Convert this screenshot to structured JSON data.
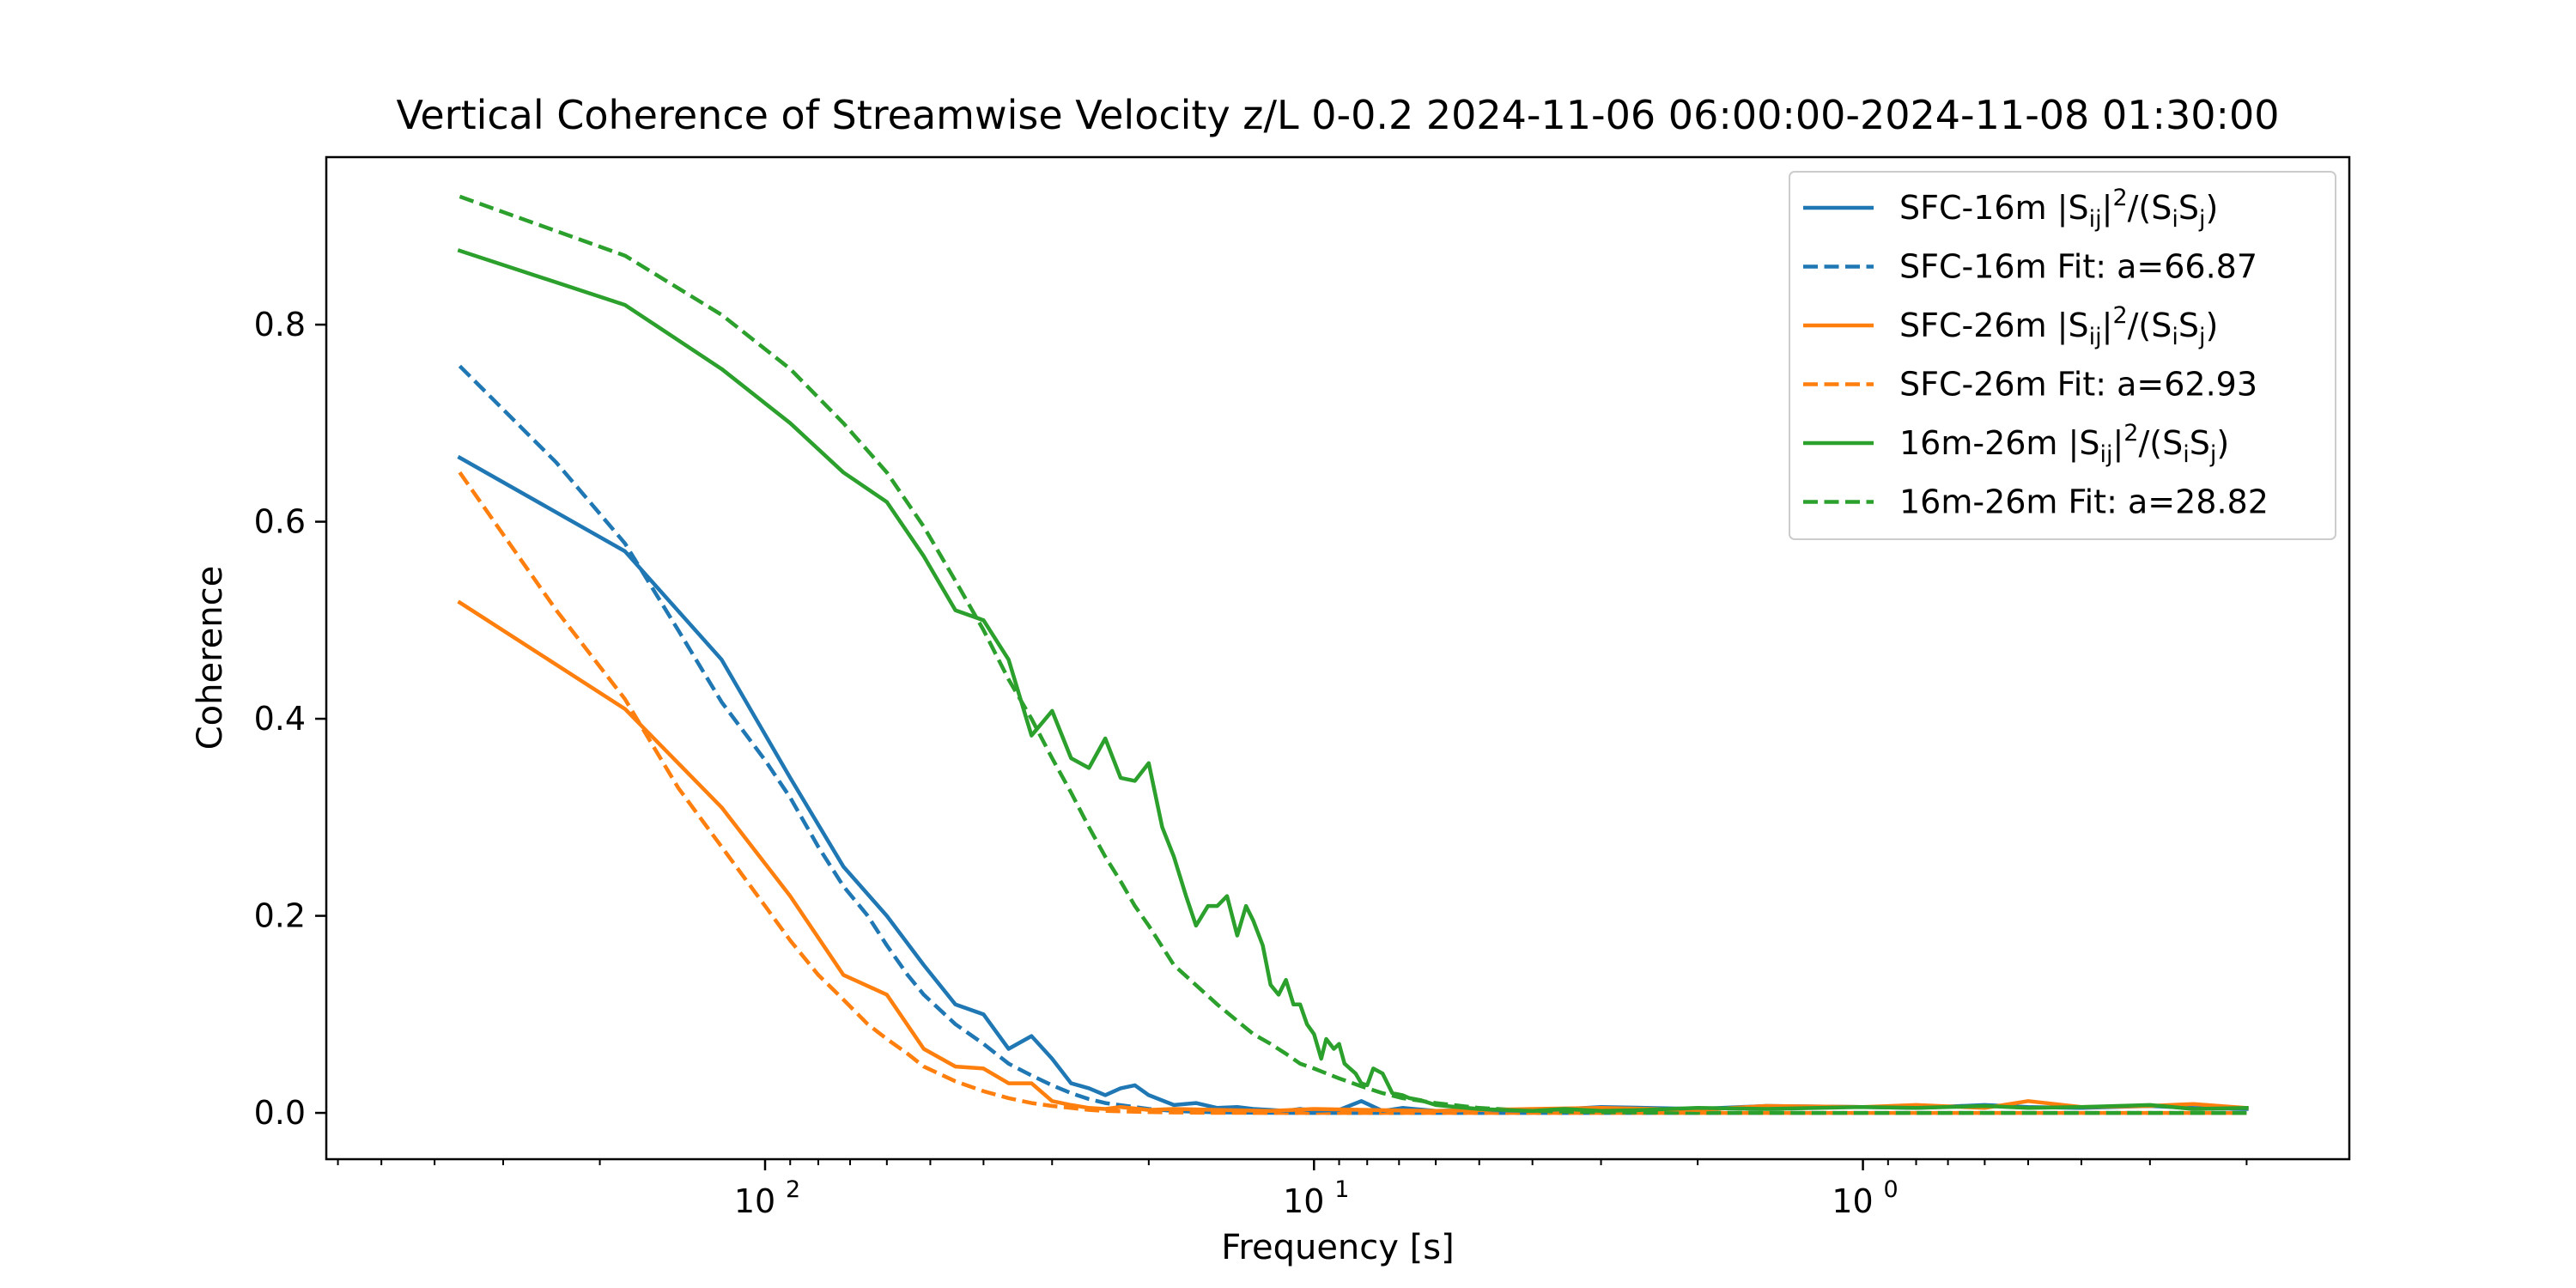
{
  "chart_data": {
    "type": "line",
    "title": "Vertical Coherence of Streamwise Velocity z/L 0-0.2 2024-11-06 06:00:00-2024-11-08 01:30:00",
    "xlabel": "Frequency [s]",
    "ylabel": "Coherence",
    "xscale": "log",
    "x_inverted": true,
    "xlim": [
      630,
      0.13
    ],
    "ylim": [
      -0.047,
      0.97
    ],
    "xticks": [
      100,
      10,
      1
    ],
    "xtick_labels": [
      "10",
      "10",
      "10"
    ],
    "xtick_exponents": [
      "2",
      "1",
      "0"
    ],
    "yticks": [
      0.0,
      0.2,
      0.4,
      0.6,
      0.8
    ],
    "ytick_labels": [
      "0.0",
      "0.2",
      "0.4",
      "0.6",
      "0.8"
    ],
    "grid": false,
    "legend_position": "top-right",
    "series": [
      {
        "name": "SFC-16m |Sij|2/(SiSj)",
        "legend": {
          "prefix": "SFC-16m |S",
          "sub1": "ij",
          "mid1": "|",
          "sup": "2",
          "mid2": "/(S",
          "sub2": "i",
          "mid3": "S",
          "sub3": "j",
          "suffix": ")"
        },
        "color": "#1f77b4",
        "style": "solid",
        "x": [
          360,
          180,
          120,
          90,
          72,
          60,
          51.4,
          45,
          40,
          36,
          32.7,
          30,
          27.7,
          25.7,
          24,
          22.5,
          21.2,
          20,
          18,
          16.4,
          15,
          13.8,
          12.9,
          12,
          11.25,
          10.6,
          10,
          9,
          8.2,
          7.5,
          6.9,
          6,
          5,
          4,
          3,
          2,
          1.5,
          1,
          0.8,
          0.6,
          0.5,
          0.4,
          0.3,
          0.25,
          0.2
        ],
        "y": [
          0.665,
          0.57,
          0.46,
          0.34,
          0.25,
          0.2,
          0.15,
          0.11,
          0.1,
          0.065,
          0.078,
          0.055,
          0.03,
          0.025,
          0.018,
          0.025,
          0.028,
          0.018,
          0.008,
          0.01,
          0.005,
          0.006,
          0.004,
          0.003,
          0.002,
          0.004,
          0.002,
          0.003,
          0.012,
          0.002,
          0.005,
          0.002,
          0.003,
          0.002,
          0.006,
          0.004,
          0.007,
          0.006,
          0.005,
          0.008,
          0.006,
          0.005,
          0.007,
          0.005,
          0.004
        ]
      },
      {
        "name": "SFC-16m Fit: a=66.87",
        "color": "#1f77b4",
        "style": "dashed",
        "x": [
          360,
          240,
          180,
          144,
          120,
          100,
          90,
          80,
          72,
          65,
          60,
          55,
          51.4,
          45,
          40,
          36,
          32.7,
          30,
          27.7,
          25.7,
          24,
          20,
          18,
          15,
          12,
          10,
          5,
          1,
          0.2
        ],
        "y": [
          0.758,
          0.66,
          0.578,
          0.49,
          0.417,
          0.358,
          0.32,
          0.27,
          0.23,
          0.2,
          0.17,
          0.14,
          0.12,
          0.09,
          0.07,
          0.05,
          0.038,
          0.028,
          0.02,
          0.014,
          0.01,
          0.004,
          0.002,
          0.0005,
          0.0001,
          0,
          0,
          0,
          0
        ]
      },
      {
        "name": "SFC-26m |Sij|2/(SiSj)",
        "legend": {
          "prefix": "SFC-26m |S",
          "sub1": "ij",
          "mid1": "|",
          "sup": "2",
          "mid2": "/(S",
          "sub2": "i",
          "mid3": "S",
          "sub3": "j",
          "suffix": ")"
        },
        "color": "#ff7f0e",
        "style": "solid",
        "x": [
          360,
          180,
          120,
          90,
          72,
          60,
          51.4,
          45,
          40,
          36,
          32.7,
          30,
          27.7,
          25.7,
          24,
          22.5,
          20,
          18,
          15,
          12,
          10,
          8,
          6,
          4,
          3,
          2,
          1.5,
          1,
          0.8,
          0.6,
          0.5,
          0.4,
          0.3,
          0.25,
          0.2
        ],
        "y": [
          0.518,
          0.41,
          0.31,
          0.22,
          0.14,
          0.12,
          0.065,
          0.047,
          0.045,
          0.03,
          0.03,
          0.012,
          0.008,
          0.005,
          0.004,
          0.006,
          0.003,
          0.004,
          0.003,
          0.002,
          0.004,
          0.003,
          0.002,
          0.004,
          0.005,
          0.003,
          0.007,
          0.006,
          0.008,
          0.005,
          0.012,
          0.006,
          0.007,
          0.009,
          0.005
        ]
      },
      {
        "name": "SFC-26m Fit: a=62.93",
        "color": "#ff7f0e",
        "style": "dashed",
        "x": [
          360,
          240,
          180,
          144,
          120,
          100,
          90,
          80,
          72,
          65,
          60,
          55,
          51.4,
          45,
          40,
          36,
          32.7,
          30,
          27.7,
          25.7,
          24,
          20,
          18,
          15,
          12,
          10,
          5,
          1,
          0.2
        ],
        "y": [
          0.65,
          0.51,
          0.42,
          0.33,
          0.27,
          0.21,
          0.175,
          0.14,
          0.115,
          0.09,
          0.075,
          0.06,
          0.047,
          0.032,
          0.022,
          0.015,
          0.01,
          0.007,
          0.005,
          0.003,
          0.002,
          0.0008,
          0.0004,
          0.0001,
          0,
          0,
          0,
          0,
          0
        ]
      },
      {
        "name": "16m-26m |Sij|2/(SiSj)",
        "legend": {
          "prefix": "16m-26m |S",
          "sub1": "ij",
          "mid1": "|",
          "sup": "2",
          "mid2": "/(S",
          "sub2": "i",
          "mid3": "S",
          "sub3": "j",
          "suffix": ")"
        },
        "color": "#2ca02c",
        "style": "solid",
        "x": [
          360,
          180,
          120,
          90,
          72,
          60,
          51.4,
          45,
          40,
          36,
          32.7,
          30,
          27.7,
          25.7,
          24,
          22.5,
          21.2,
          20,
          18.9,
          18,
          17.1,
          16.4,
          15.6,
          15,
          14.4,
          13.8,
          13.3,
          12.9,
          12.4,
          12,
          11.6,
          11.25,
          10.9,
          10.6,
          10.3,
          10,
          9.7,
          9.5,
          9.2,
          9,
          8.8,
          8.6,
          8.4,
          8.2,
          8,
          7.8,
          7.5,
          7.2,
          6.9,
          6.7,
          6.4,
          6,
          5.5,
          5,
          4.5,
          4,
          3.5,
          3,
          2.5,
          2,
          1.5,
          1,
          0.8,
          0.6,
          0.5,
          0.4,
          0.3,
          0.25,
          0.2
        ],
        "y": [
          0.875,
          0.82,
          0.755,
          0.7,
          0.65,
          0.62,
          0.565,
          0.51,
          0.5,
          0.46,
          0.383,
          0.408,
          0.36,
          0.35,
          0.38,
          0.34,
          0.337,
          0.355,
          0.29,
          0.26,
          0.22,
          0.19,
          0.21,
          0.21,
          0.22,
          0.18,
          0.21,
          0.195,
          0.17,
          0.13,
          0.12,
          0.135,
          0.11,
          0.11,
          0.09,
          0.08,
          0.055,
          0.075,
          0.065,
          0.07,
          0.05,
          0.045,
          0.04,
          0.03,
          0.028,
          0.045,
          0.04,
          0.02,
          0.018,
          0.015,
          0.013,
          0.008,
          0.006,
          0.004,
          0.003,
          0.002,
          0.004,
          0.002,
          0.003,
          0.005,
          0.004,
          0.006,
          0.005,
          0.007,
          0.005,
          0.006,
          0.008,
          0.004,
          0.005
        ]
      },
      {
        "name": "16m-26m Fit: a=28.82",
        "color": "#2ca02c",
        "style": "dashed",
        "x": [
          360,
          180,
          120,
          90,
          72,
          60,
          51.4,
          45,
          40,
          36,
          32.7,
          30,
          27.7,
          25.7,
          24,
          22.5,
          21.2,
          20,
          18,
          15,
          12.9,
          12,
          11.25,
          10.6,
          10,
          9,
          8.2,
          7.5,
          6.9,
          6,
          5,
          4,
          3,
          2,
          1,
          0.5,
          0.2
        ],
        "y": [
          0.93,
          0.87,
          0.81,
          0.755,
          0.7,
          0.65,
          0.595,
          0.54,
          0.49,
          0.44,
          0.4,
          0.36,
          0.325,
          0.29,
          0.26,
          0.235,
          0.21,
          0.19,
          0.15,
          0.11,
          0.08,
          0.07,
          0.06,
          0.05,
          0.045,
          0.035,
          0.027,
          0.02,
          0.015,
          0.01,
          0.005,
          0.002,
          0.0007,
          0.0001,
          0,
          0,
          0
        ]
      }
    ]
  }
}
